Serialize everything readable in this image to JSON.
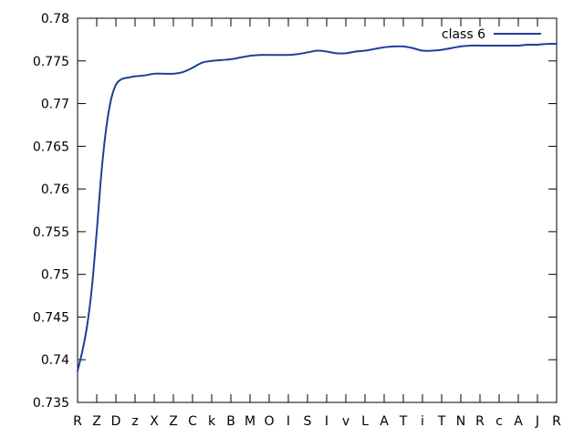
{
  "chart_data": {
    "type": "line",
    "title": "",
    "xlabel": "",
    "ylabel": "",
    "ylim": [
      0.735,
      0.78
    ],
    "yticks": [
      "0.735",
      "0.74",
      "0.745",
      "0.75",
      "0.755",
      "0.76",
      "0.765",
      "0.77",
      "0.775",
      "0.78"
    ],
    "categories": [
      "R",
      "Z",
      "D",
      "z",
      "X",
      "Z",
      "C",
      "k",
      "B",
      "M",
      "O",
      "I",
      "S",
      "I",
      "v",
      "L",
      "A",
      "T",
      "i",
      "T",
      "N",
      "R",
      "c",
      "A",
      "J",
      "R"
    ],
    "grid": false,
    "legend_position": "top-right",
    "series": [
      {
        "name": "class 6",
        "color": "#1f3f99",
        "x": [
          0,
          0.25,
          0.5,
          0.75,
          1,
          1.25,
          1.5,
          1.75,
          2,
          2.25,
          2.5,
          2.75,
          3,
          3.5,
          4,
          4.5,
          5,
          5.5,
          6,
          6.5,
          7,
          7.5,
          8,
          8.5,
          9,
          9.5,
          10,
          10.5,
          11,
          11.5,
          12,
          12.5,
          13,
          13.5,
          14,
          14.5,
          15,
          15.5,
          16,
          16.5,
          17,
          17.5,
          18,
          18.5,
          19,
          19.5,
          20,
          20.5,
          21,
          21.5,
          22,
          22.5,
          23,
          23.5,
          24,
          24.5,
          25
        ],
        "y": [
          0.7387,
          0.741,
          0.744,
          0.7485,
          0.755,
          0.762,
          0.7672,
          0.7705,
          0.7722,
          0.7728,
          0.773,
          0.7731,
          0.7732,
          0.7733,
          0.7735,
          0.7735,
          0.7735,
          0.7737,
          0.7742,
          0.7748,
          0.775,
          0.7751,
          0.7752,
          0.7754,
          0.7756,
          0.7757,
          0.7757,
          0.7757,
          0.7757,
          0.7758,
          0.776,
          0.7762,
          0.7761,
          0.7759,
          0.7759,
          0.7761,
          0.7762,
          0.7764,
          0.7766,
          0.7767,
          0.7767,
          0.7765,
          0.7762,
          0.7762,
          0.7763,
          0.7765,
          0.7767,
          0.7768,
          0.7768,
          0.7768,
          0.7768,
          0.7768,
          0.7768,
          0.7769,
          0.7769,
          0.777,
          0.777
        ]
      }
    ]
  }
}
